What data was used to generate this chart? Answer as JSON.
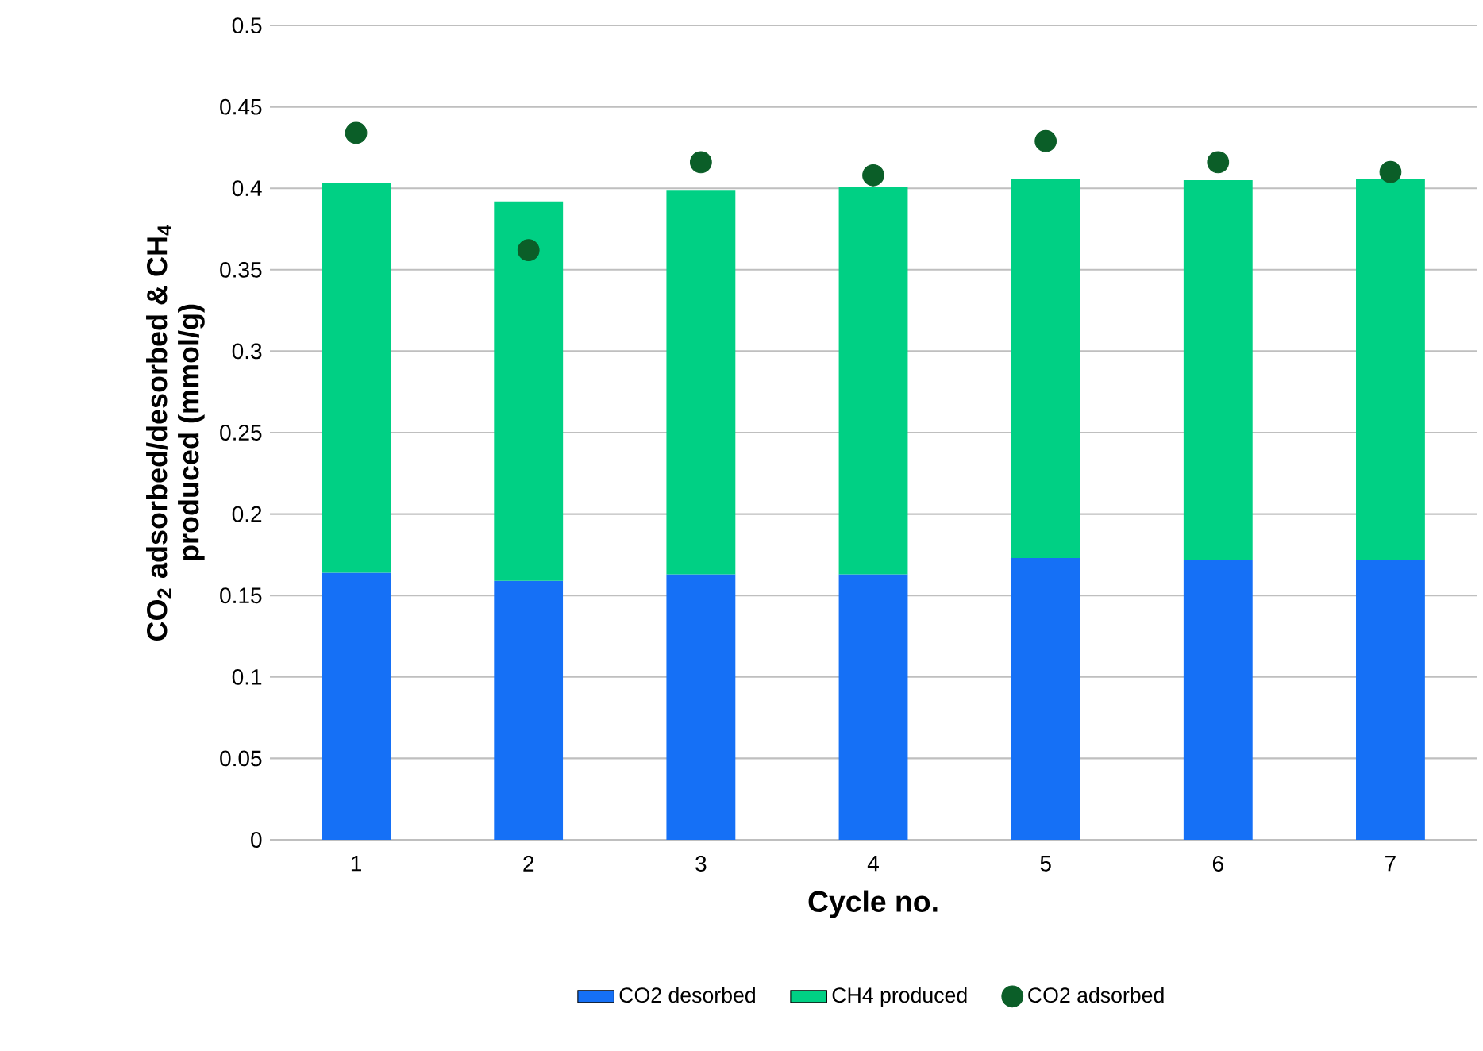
{
  "chart_data": {
    "type": "bar",
    "stacked": true,
    "xlabel": "Cycle no.",
    "ylabel": "CO$_{2}$ adsorbed/desorbed & CH$_{4}$ produced (mmol/g)",
    "categories": [
      "1",
      "2",
      "3",
      "4",
      "5",
      "6",
      "7"
    ],
    "series": [
      {
        "name": "CO2 desorbed",
        "color": "#1570f6",
        "values": [
          0.164,
          0.159,
          0.163,
          0.163,
          0.173,
          0.172,
          0.172
        ]
      },
      {
        "name": "CH4 produced",
        "color": "#00d084",
        "values": [
          0.239,
          0.233,
          0.236,
          0.238,
          0.233,
          0.233,
          0.234
        ]
      },
      {
        "name": "CO2 adsorbed",
        "type": "scatter",
        "color": "#0b5e28",
        "values": [
          0.434,
          0.362,
          0.416,
          0.408,
          0.429,
          0.416,
          0.41
        ]
      }
    ],
    "ylim": [
      0,
      0.5
    ],
    "yticks": [
      0,
      0.05,
      0.1,
      0.15,
      0.2,
      0.25,
      0.3,
      0.35,
      0.4,
      0.45,
      0.5
    ],
    "grid": "y",
    "legend": "bottom",
    "marker": "circle"
  }
}
